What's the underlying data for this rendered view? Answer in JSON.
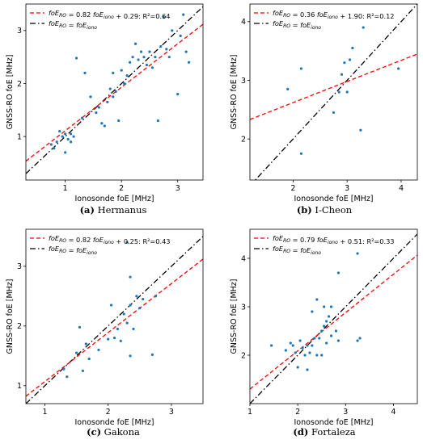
{
  "chart_data": [
    {
      "type": "scatter",
      "caption": {
        "letter": "(a)",
        "name": "Hermanus"
      },
      "xlabel": "Ionosonde foE [MHz]",
      "ylabel": "GNSS-RO foE [MHz]",
      "xlim": [
        0.3,
        3.45
      ],
      "ylim": [
        0.18,
        3.5
      ],
      "xticks": [
        1,
        2,
        3
      ],
      "yticks": [
        1,
        2,
        3
      ],
      "fit": {
        "slope": 0.82,
        "intercept": 0.29,
        "r2": 0.64
      },
      "legend": {
        "fit_label": "foE_RO = 0.82 foE_iono + 0.29: R²=0.64",
        "identity_label": "foE_RO = foE_iono"
      },
      "points": [
        [
          0.75,
          0.85
        ],
        [
          0.8,
          0.78
        ],
        [
          0.85,
          0.9
        ],
        [
          0.9,
          1.1
        ],
        [
          0.95,
          1.0
        ],
        [
          1.0,
          1.05
        ],
        [
          1.0,
          0.7
        ],
        [
          1.05,
          0.95
        ],
        [
          1.1,
          0.9
        ],
        [
          1.1,
          1.05
        ],
        [
          1.15,
          1.0
        ],
        [
          1.2,
          2.48
        ],
        [
          1.3,
          1.35
        ],
        [
          1.35,
          2.2
        ],
        [
          1.45,
          1.75
        ],
        [
          1.55,
          1.45
        ],
        [
          1.6,
          1.55
        ],
        [
          1.65,
          1.25
        ],
        [
          1.7,
          1.2
        ],
        [
          1.75,
          1.65
        ],
        [
          1.8,
          1.9
        ],
        [
          1.85,
          2.2
        ],
        [
          1.85,
          1.75
        ],
        [
          1.9,
          1.85
        ],
        [
          1.95,
          1.3
        ],
        [
          2.0,
          2.25
        ],
        [
          2.05,
          2.0
        ],
        [
          2.1,
          2.15
        ],
        [
          2.15,
          2.4
        ],
        [
          2.2,
          2.5
        ],
        [
          2.25,
          2.75
        ],
        [
          2.3,
          2.45
        ],
        [
          2.35,
          2.6
        ],
        [
          2.4,
          2.5
        ],
        [
          2.45,
          2.35
        ],
        [
          2.5,
          2.6
        ],
        [
          2.55,
          2.3
        ],
        [
          2.6,
          2.5
        ],
        [
          2.65,
          1.3
        ],
        [
          2.7,
          2.7
        ],
        [
          2.75,
          3.25
        ],
        [
          2.8,
          2.65
        ],
        [
          2.85,
          2.5
        ],
        [
          2.9,
          3.0
        ],
        [
          3.0,
          1.8
        ],
        [
          3.05,
          2.9
        ],
        [
          3.1,
          3.3
        ],
        [
          3.15,
          2.6
        ],
        [
          3.2,
          2.4
        ]
      ]
    },
    {
      "type": "scatter",
      "caption": {
        "letter": "(b)",
        "name": "I-Cheon"
      },
      "xlabel": "Ionosonde foE [MHz]",
      "ylabel": "GNSS-RO foE [MHz]",
      "xlim": [
        1.2,
        4.3
      ],
      "ylim": [
        1.3,
        4.3
      ],
      "xticks": [
        2,
        3,
        4
      ],
      "yticks": [
        2,
        3,
        4
      ],
      "fit": {
        "slope": 0.36,
        "intercept": 1.9,
        "r2": 0.12
      },
      "legend": {
        "fit_label": "foE_RO = 0.36 foE_iono + 1.90: R²=0.12",
        "identity_label": "foE_RO = foE_iono"
      },
      "points": [
        [
          1.9,
          2.85
        ],
        [
          2.15,
          1.75
        ],
        [
          2.15,
          3.2
        ],
        [
          2.75,
          2.45
        ],
        [
          2.85,
          2.8
        ],
        [
          2.9,
          3.1
        ],
        [
          2.95,
          3.3
        ],
        [
          3.0,
          2.8
        ],
        [
          3.05,
          3.35
        ],
        [
          3.1,
          3.55
        ],
        [
          3.25,
          2.15
        ],
        [
          3.3,
          3.9
        ],
        [
          3.95,
          3.2
        ]
      ]
    },
    {
      "type": "scatter",
      "caption": {
        "letter": "(c)",
        "name": "Gakona"
      },
      "xlabel": "Ionosonde foE [MHz]",
      "ylabel": "GNSS-RO foE [MHz]",
      "xlim": [
        0.7,
        3.5
      ],
      "ylim": [
        0.7,
        3.62
      ],
      "xticks": [
        1,
        2,
        3
      ],
      "yticks": [
        1,
        2,
        3
      ],
      "fit": {
        "slope": 0.82,
        "intercept": 0.25,
        "r2": 0.43
      },
      "legend": {
        "fit_label": "foE_RO = 0.82 foE_iono + 0.25: R²=0.43",
        "identity_label": "foE_RO = foE_iono"
      },
      "points": [
        [
          1.3,
          1.28
        ],
        [
          1.35,
          1.15
        ],
        [
          1.5,
          1.55
        ],
        [
          1.55,
          1.98
        ],
        [
          1.6,
          1.25
        ],
        [
          1.65,
          1.7
        ],
        [
          1.7,
          1.45
        ],
        [
          1.85,
          1.6
        ],
        [
          2.0,
          1.78
        ],
        [
          2.05,
          2.35
        ],
        [
          2.1,
          1.8
        ],
        [
          2.15,
          1.95
        ],
        [
          2.2,
          1.75
        ],
        [
          2.25,
          2.2
        ],
        [
          2.3,
          2.05
        ],
        [
          2.3,
          3.4
        ],
        [
          2.35,
          2.35
        ],
        [
          2.35,
          1.5
        ],
        [
          2.35,
          2.82
        ],
        [
          2.4,
          1.95
        ],
        [
          2.45,
          2.5
        ],
        [
          2.5,
          2.3
        ],
        [
          2.55,
          2.45
        ],
        [
          2.7,
          1.52
        ],
        [
          2.75,
          2.5
        ]
      ]
    },
    {
      "type": "scatter",
      "caption": {
        "letter": "(d)",
        "name": "Fortaleza"
      },
      "xlabel": "Ionosonde foE [MHz]",
      "ylabel": "GNSS-RO foE [MHz]",
      "xlim": [
        1.0,
        4.5
      ],
      "ylim": [
        1.0,
        4.6
      ],
      "xticks": [
        1,
        2,
        3,
        4
      ],
      "yticks": [
        2,
        3,
        4
      ],
      "fit": {
        "slope": 0.79,
        "intercept": 0.51,
        "r2": 0.33
      },
      "legend": {
        "fit_label": "foE_RO = 0.79 foE_iono + 0.51: R²=0.33",
        "identity_label": "foE_RO = foE_iono"
      },
      "points": [
        [
          1.45,
          2.2
        ],
        [
          1.75,
          2.1
        ],
        [
          1.85,
          2.25
        ],
        [
          1.9,
          2.2
        ],
        [
          1.95,
          2.05
        ],
        [
          2.0,
          1.75
        ],
        [
          2.05,
          2.3
        ],
        [
          2.1,
          2.15
        ],
        [
          2.15,
          2.0
        ],
        [
          2.2,
          2.2
        ],
        [
          2.2,
          1.7
        ],
        [
          2.25,
          2.05
        ],
        [
          2.3,
          2.9
        ],
        [
          2.3,
          2.2
        ],
        [
          2.35,
          2.35
        ],
        [
          2.4,
          2.0
        ],
        [
          2.4,
          3.15
        ],
        [
          2.45,
          2.35
        ],
        [
          2.5,
          2.5
        ],
        [
          2.5,
          2.0
        ],
        [
          2.55,
          3.0
        ],
        [
          2.55,
          2.6
        ],
        [
          2.6,
          2.25
        ],
        [
          2.6,
          2.7
        ],
        [
          2.65,
          2.8
        ],
        [
          2.7,
          2.4
        ],
        [
          2.7,
          3.0
        ],
        [
          2.8,
          2.5
        ],
        [
          2.85,
          3.7
        ],
        [
          2.85,
          2.3
        ],
        [
          3.25,
          4.1
        ],
        [
          3.25,
          2.3
        ],
        [
          3.3,
          2.35
        ]
      ]
    }
  ],
  "colors": {
    "points": "#1f77b4",
    "fit_line": "#ff0000",
    "identity_line": "#000000"
  }
}
